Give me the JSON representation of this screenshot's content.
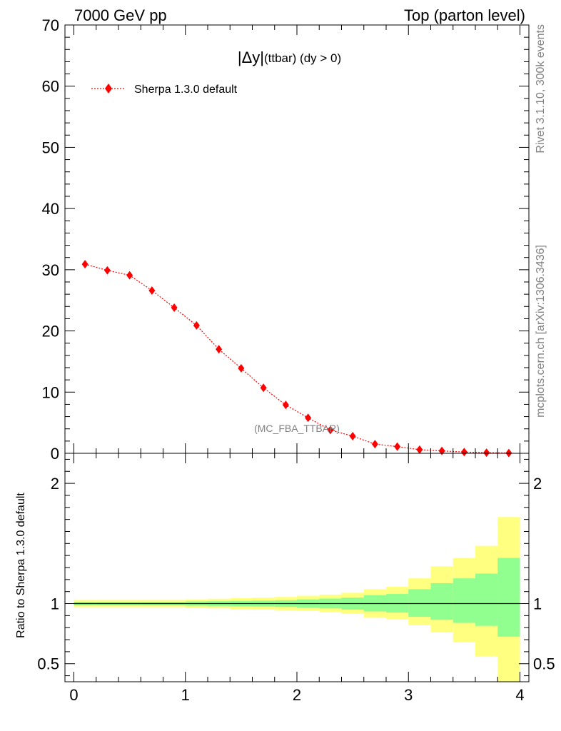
{
  "header": {
    "left": "7000 GeV pp",
    "right": "Top (parton level)"
  },
  "side": {
    "rivet": "Rivet 3.1.10,  300k events",
    "mcplots": "mcplots.cern.ch [arXiv:1306.3436]"
  },
  "chart_data": [
    {
      "type": "line",
      "title_main": "|Δy|",
      "title_sub": " (ttbar) (dy > 0)",
      "analysis_label": "(MC_FBA_TTBAR)",
      "legend_placement": "top-left",
      "xlim": [
        -0.08,
        4.08
      ],
      "ylim": [
        0,
        70
      ],
      "yticks": [
        0,
        10,
        20,
        30,
        40,
        50,
        60,
        70
      ],
      "series": [
        {
          "name": "Sherpa 1.3.0 default",
          "color": "#ff0000",
          "marker": "diamond",
          "x": [
            0.1,
            0.3,
            0.5,
            0.7,
            0.9,
            1.1,
            1.3,
            1.5,
            1.7,
            1.9,
            2.1,
            2.3,
            2.5,
            2.7,
            2.9,
            3.1,
            3.3,
            3.5,
            3.7,
            3.9
          ],
          "y": [
            30.9,
            29.9,
            29.1,
            26.6,
            23.8,
            20.9,
            17.0,
            13.9,
            10.7,
            7.9,
            5.8,
            3.8,
            2.8,
            1.5,
            1.1,
            0.6,
            0.4,
            0.2,
            0.1,
            0.05
          ]
        }
      ]
    },
    {
      "type": "area",
      "ylabel": "Ratio to Sherpa 1.3.0 default",
      "xlim": [
        -0.08,
        4.08
      ],
      "ylim": [
        0.35,
        2.25
      ],
      "xticks": [
        0,
        1,
        2,
        3,
        4
      ],
      "yticks": [
        0.5,
        1,
        2
      ],
      "reference_line": 1,
      "bin_edges": [
        0,
        0.2,
        0.4,
        0.6,
        0.8,
        1.0,
        1.2,
        1.4,
        1.6,
        1.8,
        2.0,
        2.2,
        2.4,
        2.6,
        2.8,
        3.0,
        3.2,
        3.4,
        3.6,
        3.8,
        4.0
      ],
      "band_outer": {
        "color": "#ffff80",
        "lo": [
          0.97,
          0.97,
          0.97,
          0.97,
          0.97,
          0.965,
          0.96,
          0.955,
          0.95,
          0.945,
          0.94,
          0.93,
          0.915,
          0.885,
          0.87,
          0.82,
          0.76,
          0.68,
          0.56,
          0.35
        ],
        "hi": [
          1.03,
          1.03,
          1.03,
          1.03,
          1.03,
          1.035,
          1.04,
          1.045,
          1.05,
          1.055,
          1.065,
          1.075,
          1.09,
          1.12,
          1.14,
          1.21,
          1.31,
          1.38,
          1.48,
          1.72
        ]
      },
      "band_inner": {
        "color": "#90ff90",
        "lo": [
          0.985,
          0.985,
          0.985,
          0.985,
          0.985,
          0.982,
          0.98,
          0.977,
          0.975,
          0.972,
          0.966,
          0.96,
          0.95,
          0.935,
          0.925,
          0.89,
          0.865,
          0.84,
          0.815,
          0.725
        ],
        "hi": [
          1.015,
          1.015,
          1.015,
          1.015,
          1.015,
          1.018,
          1.02,
          1.023,
          1.025,
          1.028,
          1.035,
          1.042,
          1.05,
          1.07,
          1.08,
          1.12,
          1.17,
          1.21,
          1.25,
          1.38
        ]
      }
    }
  ]
}
